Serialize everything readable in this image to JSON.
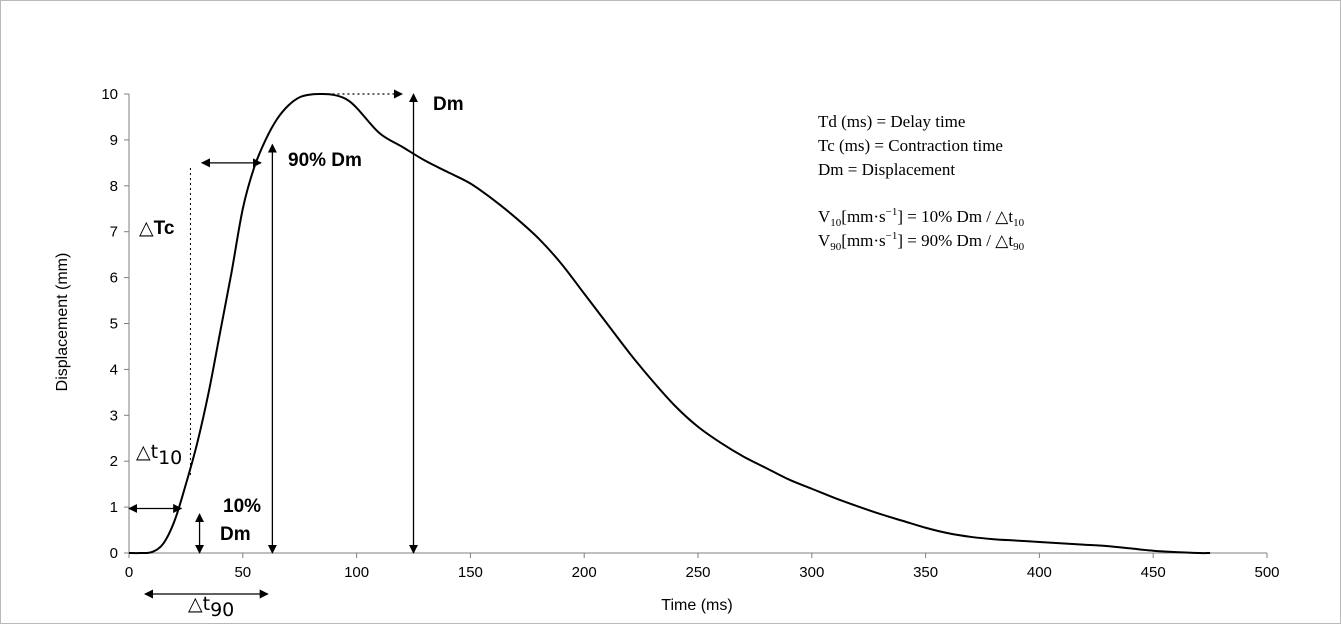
{
  "chart_data": {
    "type": "line",
    "xlabel": "Time (ms)",
    "ylabel": "Displacement (mm)",
    "xlim": [
      0,
      500
    ],
    "ylim": [
      0,
      10
    ],
    "x_ticks": [
      "0",
      "50",
      "100",
      "150",
      "200",
      "250",
      "300",
      "350",
      "400",
      "450",
      "500"
    ],
    "y_ticks": [
      "0",
      "1",
      "2",
      "3",
      "4",
      "5",
      "6",
      "7",
      "8",
      "9",
      "10"
    ],
    "grid": false,
    "series": [
      {
        "x": [
          0,
          5,
          10,
          15,
          20,
          25,
          30,
          35,
          40,
          45,
          50,
          55,
          60,
          65,
          70,
          75,
          80,
          85,
          90,
          95,
          100,
          110,
          120,
          130,
          140,
          150,
          160,
          170,
          180,
          190,
          200,
          210,
          220,
          230,
          240,
          250,
          260,
          270,
          280,
          290,
          300,
          310,
          320,
          330,
          340,
          350,
          360,
          370,
          380,
          390,
          400,
          410,
          420,
          430,
          440,
          450,
          460,
          470,
          475
        ],
        "y": [
          0,
          0,
          0.02,
          0.2,
          0.7,
          1.5,
          2.4,
          3.5,
          4.8,
          6.1,
          7.5,
          8.4,
          9.0,
          9.45,
          9.75,
          9.93,
          9.99,
          10.0,
          9.98,
          9.9,
          9.7,
          9.15,
          8.85,
          8.55,
          8.3,
          8.05,
          7.7,
          7.3,
          6.85,
          6.3,
          5.65,
          5.0,
          4.35,
          3.75,
          3.2,
          2.75,
          2.4,
          2.1,
          1.85,
          1.6,
          1.4,
          1.2,
          1.02,
          0.85,
          0.7,
          0.55,
          0.43,
          0.35,
          0.3,
          0.27,
          0.24,
          0.21,
          0.18,
          0.15,
          0.1,
          0.05,
          0.02,
          0,
          0
        ]
      }
    ],
    "annotations": {
      "dm": "Dm",
      "dm90": "90% Dm",
      "dm10_a": "10%",
      "dm10_b": "Dm",
      "dtc_sym": "△",
      "dtc_label": "Tc",
      "dt10_sym": "△t",
      "dt10_sub": "10",
      "dt90_sym": "△t",
      "dt90_sub": "90"
    },
    "legend_text": {
      "line1": "Td (ms) = Delay time",
      "line2": "Tc (ms) = Contraction time",
      "line3": "Dm = Displacement",
      "v10_a": "V",
      "v10_sub": "10",
      "v10_b": "[mm·s",
      "v10_sup": "−1",
      "v10_c": "] = 10% Dm / △t",
      "v10_sub2": "10",
      "v90_a": "V",
      "v90_sub": "90",
      "v90_b": "[mm·s",
      "v90_sup": "−1",
      "v90_c": "] = 90% Dm / △t",
      "v90_sub2": "90"
    }
  }
}
